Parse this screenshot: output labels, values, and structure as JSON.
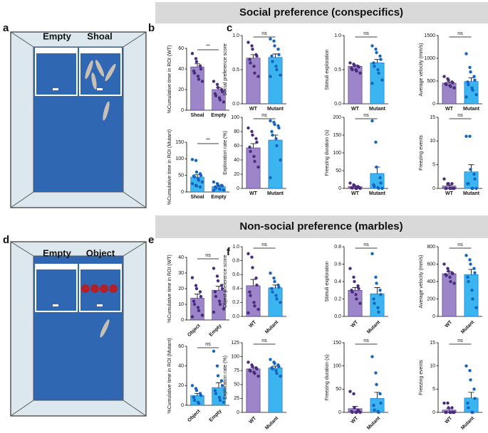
{
  "figure": {
    "sections": [
      "Social preference (conspecifics)",
      "Non-social preference (marbles)"
    ],
    "panel_labels": [
      "a",
      "b",
      "c",
      "d",
      "e",
      "f"
    ],
    "tank_a": {
      "left": "Empty",
      "right": "Shoal"
    },
    "tank_d": {
      "left": "Empty",
      "right": "Object"
    }
  },
  "chart_data": [
    {
      "type": "bar",
      "ylabel": "%Cumulative time in ROI (WT)",
      "categories": [
        "Shoal",
        "Empty"
      ],
      "values": [
        42,
        20
      ],
      "errors": [
        3,
        2
      ],
      "points": [
        [
          55,
          50,
          47,
          43,
          40,
          38,
          36,
          33,
          30,
          28
        ],
        [
          28,
          25,
          22,
          20,
          18,
          16,
          14,
          12,
          10,
          8
        ]
      ],
      "colors": [
        "#9c85c8",
        "#9c85c8"
      ],
      "point_colors": [
        "#4a2c7f",
        "#4a2c7f"
      ],
      "ylim": [
        0,
        60
      ],
      "yticks": [
        0,
        20,
        40,
        60
      ],
      "annotation": "**"
    },
    {
      "type": "bar",
      "ylabel": "%Cumulative time in ROI (Mutant)",
      "categories": [
        "Shoal",
        "Empty"
      ],
      "values": [
        45,
        16
      ],
      "errors": [
        7,
        2
      ],
      "points": [
        [
          98,
          95,
          60,
          55,
          50,
          48,
          45,
          40,
          35,
          30,
          25,
          20,
          18,
          15
        ],
        [
          30,
          25,
          22,
          20,
          18,
          15,
          12,
          10,
          8,
          6,
          5
        ]
      ],
      "colors": [
        "#3ab5f0",
        "#3ab5f0"
      ],
      "point_colors": [
        "#1565c0",
        "#1565c0"
      ],
      "ylim": [
        0,
        150
      ],
      "yticks": [
        0,
        50,
        100,
        150
      ],
      "annotation": "**"
    },
    {
      "type": "bar",
      "ylabel": "Social preference score",
      "categories": [
        "WT",
        "Mutant"
      ],
      "values": [
        0.67,
        0.68
      ],
      "errors": [
        0.05,
        0.05
      ],
      "points": [
        [
          0.9,
          0.85,
          0.8,
          0.72,
          0.7,
          0.65,
          0.6,
          0.55,
          0.45,
          0.4
        ],
        [
          0.95,
          0.92,
          0.85,
          0.8,
          0.72,
          0.7,
          0.62,
          0.55,
          0.5,
          0.42,
          0.4
        ]
      ],
      "colors": [
        "#9c85c8",
        "#3ab5f0"
      ],
      "point_colors": [
        "#4a2c7f",
        "#1565c0"
      ],
      "ylim": [
        0,
        1
      ],
      "yticks": [
        {
          "value": 0,
          "label": "0.0"
        },
        0.5,
        {
          "value": 1,
          "label": "1.0"
        }
      ],
      "annotation": "ns"
    },
    {
      "type": "bar",
      "ylabel": "Stimuli exploration",
      "categories": [
        "WT",
        "Mutant"
      ],
      "values": [
        0.55,
        0.6
      ],
      "errors": [
        0.02,
        0.05
      ],
      "points": [
        [
          0.6,
          0.58,
          0.56,
          0.55,
          0.54,
          0.52,
          0.5,
          0.5,
          0.48,
          0.45
        ],
        [
          0.85,
          0.8,
          0.75,
          0.7,
          0.65,
          0.6,
          0.55,
          0.5,
          0.45,
          0.35,
          0.3
        ]
      ],
      "colors": [
        "#9c85c8",
        "#3ab5f0"
      ],
      "point_colors": [
        "#4a2c7f",
        "#1565c0"
      ],
      "ylim": [
        0,
        1
      ],
      "yticks": [
        {
          "value": 0,
          "label": "0.0"
        },
        0.5,
        {
          "value": 1,
          "label": "1.0"
        }
      ],
      "annotation": "ns"
    },
    {
      "type": "bar",
      "ylabel": "Average velocity (mm/s)",
      "categories": [
        "WT",
        "Mutant"
      ],
      "values": [
        455,
        490
      ],
      "errors": [
        25,
        80
      ],
      "points": [
        [
          600,
          550,
          520,
          480,
          460,
          440,
          420,
          400,
          380,
          350
        ],
        [
          1100,
          800,
          700,
          600,
          520,
          480,
          420,
          350,
          300,
          200,
          150
        ]
      ],
      "colors": [
        "#9c85c8",
        "#3ab5f0"
      ],
      "point_colors": [
        "#4a2c7f",
        "#1565c0"
      ],
      "ylim": [
        0,
        1500
      ],
      "yticks": [
        0,
        500,
        1000,
        1500
      ],
      "annotation": "ns"
    },
    {
      "type": "bar",
      "ylabel": "Exploration rate (%)",
      "categories": [
        "WT",
        "Mutant"
      ],
      "values": [
        57,
        68
      ],
      "errors": [
        6,
        7
      ],
      "points": [
        [
          85,
          80,
          75,
          70,
          65,
          58,
          52,
          45,
          38,
          30
        ],
        [
          95,
          93,
          90,
          88,
          85,
          80,
          75,
          70,
          60,
          40,
          15
        ]
      ],
      "colors": [
        "#9c85c8",
        "#3ab5f0"
      ],
      "point_colors": [
        "#4a2c7f",
        "#1565c0"
      ],
      "ylim": [
        0,
        100
      ],
      "yticks": [
        0,
        20,
        40,
        60,
        80,
        100
      ],
      "annotation": "ns"
    },
    {
      "type": "bar",
      "ylabel": "Freezing duration (s)",
      "categories": [
        "WT",
        "Mutant"
      ],
      "values": [
        5,
        42
      ],
      "errors": [
        2,
        18
      ],
      "points": [
        [
          15,
          10,
          8,
          5,
          3,
          2,
          1,
          0,
          0,
          0
        ],
        [
          190,
          130,
          60,
          30,
          15,
          10,
          5,
          2,
          0,
          0
        ]
      ],
      "colors": [
        "#9c85c8",
        "#3ab5f0"
      ],
      "point_colors": [
        "#4a2c7f",
        "#1565c0"
      ],
      "ylim": [
        0,
        200
      ],
      "yticks": [
        0,
        50,
        100,
        150,
        200
      ],
      "annotation": "ns"
    },
    {
      "type": "bar",
      "ylabel": "Freezing events",
      "categories": [
        "WT",
        "Mutant"
      ],
      "values": [
        0.5,
        3.5
      ],
      "errors": [
        0.2,
        1.5
      ],
      "points": [
        [
          2,
          1,
          1,
          1,
          0,
          0,
          0,
          0,
          0,
          0
        ],
        [
          11,
          11,
          4,
          3,
          2,
          1,
          1,
          0,
          0,
          0
        ]
      ],
      "colors": [
        "#9c85c8",
        "#3ab5f0"
      ],
      "point_colors": [
        "#4a2c7f",
        "#1565c0"
      ],
      "ylim": [
        0,
        15
      ],
      "yticks": [
        0,
        5,
        10,
        15
      ],
      "annotation": "ns"
    },
    {
      "type": "bar",
      "ylabel": "%Cumulative time in ROI (WT)",
      "categories": [
        "Object",
        "Empty"
      ],
      "values": [
        14,
        19
      ],
      "errors": [
        2.5,
        2.5
      ],
      "points": [
        [
          27,
          22,
          20,
          18,
          15,
          12,
          10,
          8,
          6,
          3,
          2
        ],
        [
          33,
          28,
          25,
          22,
          20,
          18,
          15,
          12,
          10,
          7,
          5
        ]
      ],
      "colors": [
        "#9c85c8",
        "#9c85c8"
      ],
      "point_colors": [
        "#4a2c7f",
        "#4a2c7f"
      ],
      "ylim": [
        0,
        40
      ],
      "yticks": [
        0,
        10,
        20,
        30,
        40
      ],
      "annotation": "ns"
    },
    {
      "type": "bar",
      "ylabel": "%Cumulative time in ROI (Mutant)",
      "categories": [
        "Object",
        "Empty"
      ],
      "values": [
        10,
        18
      ],
      "errors": [
        2,
        5
      ],
      "points": [
        [
          20,
          17,
          15,
          12,
          10,
          8,
          5,
          3,
          2
        ],
        [
          55,
          40,
          30,
          25,
          20,
          15,
          12,
          8,
          5,
          3
        ]
      ],
      "colors": [
        "#3ab5f0",
        "#3ab5f0"
      ],
      "point_colors": [
        "#1565c0",
        "#1565c0"
      ],
      "ylim": [
        0,
        60
      ],
      "yticks": [
        0,
        20,
        40,
        60
      ],
      "annotation": "ns"
    },
    {
      "type": "bar",
      "ylabel": "Object preference score",
      "categories": [
        "WT",
        "Mutant"
      ],
      "values": [
        0.44,
        0.41
      ],
      "errors": [
        0.09,
        0.04
      ],
      "points": [
        [
          0.9,
          0.85,
          0.7,
          0.55,
          0.45,
          0.35,
          0.3,
          0.2,
          0.15,
          0.1,
          0.05
        ],
        [
          0.62,
          0.55,
          0.5,
          0.45,
          0.42,
          0.4,
          0.35,
          0.3,
          0.25,
          0.2
        ]
      ],
      "colors": [
        "#9c85c8",
        "#3ab5f0"
      ],
      "point_colors": [
        "#4a2c7f",
        "#1565c0"
      ],
      "ylim": [
        0,
        1
      ],
      "yticks": [
        {
          "value": 0,
          "label": "0.0"
        },
        0.2,
        0.4,
        0.6,
        0.8,
        {
          "value": 1,
          "label": "1.0"
        }
      ],
      "annotation": "ns"
    },
    {
      "type": "bar",
      "ylabel": "Stimuli exploration",
      "categories": [
        "WT",
        "Mutant"
      ],
      "values": [
        0.3,
        0.26
      ],
      "errors": [
        0.03,
        0.07
      ],
      "points": [
        [
          0.55,
          0.45,
          0.4,
          0.35,
          0.32,
          0.3,
          0.28,
          0.25,
          0.2,
          0.15
        ],
        [
          0.72,
          0.45,
          0.38,
          0.3,
          0.25,
          0.2,
          0.15,
          0.1,
          0.05
        ]
      ],
      "colors": [
        "#9c85c8",
        "#3ab5f0"
      ],
      "point_colors": [
        "#4a2c7f",
        "#1565c0"
      ],
      "ylim": [
        0,
        0.8
      ],
      "yticks": [
        {
          "value": 0,
          "label": "0.0"
        },
        0.2,
        0.4,
        0.6,
        0.8
      ],
      "annotation": "ns"
    },
    {
      "type": "bar",
      "ylabel": "Average velocity (mm/s)",
      "categories": [
        "WT",
        "Mutant"
      ],
      "values": [
        490,
        480
      ],
      "errors": [
        25,
        60
      ],
      "points": [
        [
          600,
          550,
          520,
          500,
          490,
          480,
          470,
          450,
          400,
          380
        ],
        [
          700,
          650,
          600,
          550,
          500,
          450,
          400,
          300,
          200,
          100
        ]
      ],
      "colors": [
        "#9c85c8",
        "#3ab5f0"
      ],
      "point_colors": [
        "#4a2c7f",
        "#1565c0"
      ],
      "ylim": [
        0,
        800
      ],
      "yticks": [
        0,
        200,
        400,
        600,
        800
      ],
      "annotation": "ns"
    },
    {
      "type": "bar",
      "ylabel": "Exploration rate (%)",
      "categories": [
        "WT",
        "Mutant"
      ],
      "values": [
        78,
        80
      ],
      "errors": [
        2.5,
        3
      ],
      "points": [
        [
          90,
          85,
          82,
          80,
          78,
          76,
          74,
          72,
          70,
          65
        ],
        [
          95,
          90,
          88,
          85,
          82,
          80,
          78,
          75,
          70,
          65
        ]
      ],
      "colors": [
        "#9c85c8",
        "#3ab5f0"
      ],
      "point_colors": [
        "#4a2c7f",
        "#1565c0"
      ],
      "ylim": [
        0,
        125
      ],
      "yticks": [
        0,
        25,
        50,
        75,
        100,
        125
      ],
      "annotation": "ns"
    },
    {
      "type": "bar",
      "ylabel": "Freezing duration (s)",
      "categories": [
        "WT",
        "Mutant"
      ],
      "values": [
        8,
        30
      ],
      "errors": [
        5,
        13
      ],
      "points": [
        [
          45,
          40,
          10,
          5,
          3,
          2,
          0,
          0,
          0,
          0
        ],
        [
          120,
          85,
          60,
          40,
          20,
          15,
          5,
          2,
          0
        ]
      ],
      "colors": [
        "#9c85c8",
        "#3ab5f0"
      ],
      "point_colors": [
        "#4a2c7f",
        "#1565c0"
      ],
      "ylim": [
        0,
        150
      ],
      "yticks": [
        0,
        50,
        100,
        150
      ],
      "annotation": "ns"
    },
    {
      "type": "bar",
      "ylabel": "Freezing events",
      "categories": [
        "WT",
        "Mutant"
      ],
      "values": [
        0.5,
        3.1
      ],
      "errors": [
        0.3,
        1.2
      ],
      "points": [
        [
          2,
          2,
          1,
          1,
          0,
          0,
          0,
          0,
          0,
          0
        ],
        [
          10,
          9,
          7,
          5,
          3,
          2,
          1,
          0,
          0
        ]
      ],
      "colors": [
        "#9c85c8",
        "#3ab5f0"
      ],
      "point_colors": [
        "#4a2c7f",
        "#1565c0"
      ],
      "ylim": [
        0,
        15
      ],
      "yticks": [
        0,
        5,
        10,
        15
      ],
      "annotation": "ns"
    }
  ]
}
